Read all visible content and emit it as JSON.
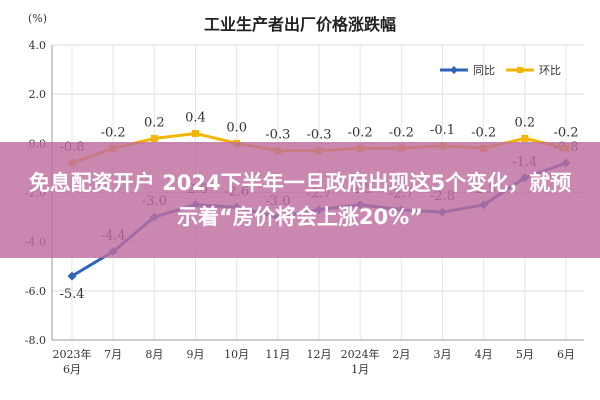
{
  "chart_data": {
    "type": "line",
    "title": "工业生产者出厂价格涨跌幅",
    "ylabel": "(%)",
    "ylim": [
      -8.0,
      4.0
    ],
    "yticks": [
      "4.0",
      "2.0",
      "0.0",
      "-2.0",
      "-4.0",
      "-6.0",
      "-8.0"
    ],
    "ytick_values": [
      4,
      2,
      0,
      -2,
      -4,
      -6,
      -8
    ],
    "categories": [
      [
        "2023年",
        "6月"
      ],
      [
        "7月"
      ],
      [
        "8月"
      ],
      [
        "9月"
      ],
      [
        "10月"
      ],
      [
        "11月"
      ],
      [
        "12月"
      ],
      [
        "2024年",
        "1月"
      ],
      [
        "2月"
      ],
      [
        "3月"
      ],
      [
        "4月"
      ],
      [
        "5月"
      ],
      [
        "6月"
      ]
    ],
    "grid": true,
    "legend_position": "top-right",
    "series": [
      {
        "name": "同比",
        "color": "#2e63b8",
        "values": [
          -5.4,
          -4.4,
          -3.0,
          -2.5,
          -2.6,
          -3.0,
          -2.7,
          -2.5,
          -2.7,
          -2.8,
          -2.5,
          -1.4,
          -0.8
        ],
        "labels": [
          "-5.4",
          "-4.4",
          "-3.0",
          "-2.5",
          "-2.6",
          "-3.0",
          "-2.7",
          "-2.5",
          "-2.7",
          "-2.8",
          "-2.5",
          "-1.4",
          "-0.8"
        ]
      },
      {
        "name": "环比",
        "color": "#f5b400",
        "values": [
          -0.8,
          -0.2,
          0.2,
          0.4,
          0.0,
          -0.3,
          -0.3,
          -0.2,
          -0.2,
          -0.1,
          -0.2,
          0.2,
          -0.2
        ],
        "labels": [
          "-0.8",
          "-0.2",
          "0.2",
          "0.4",
          "0.0",
          "-0.3",
          "-0.3",
          "-0.2",
          "-0.2",
          "-0.1",
          "-0.2",
          "0.2",
          "-0.2"
        ]
      }
    ]
  },
  "overlay": {
    "headline": "免息配资开户 2024下半年一旦政府出现这5个变化，就预示着“房价将会上涨20%”",
    "color": "#be6ea0"
  }
}
